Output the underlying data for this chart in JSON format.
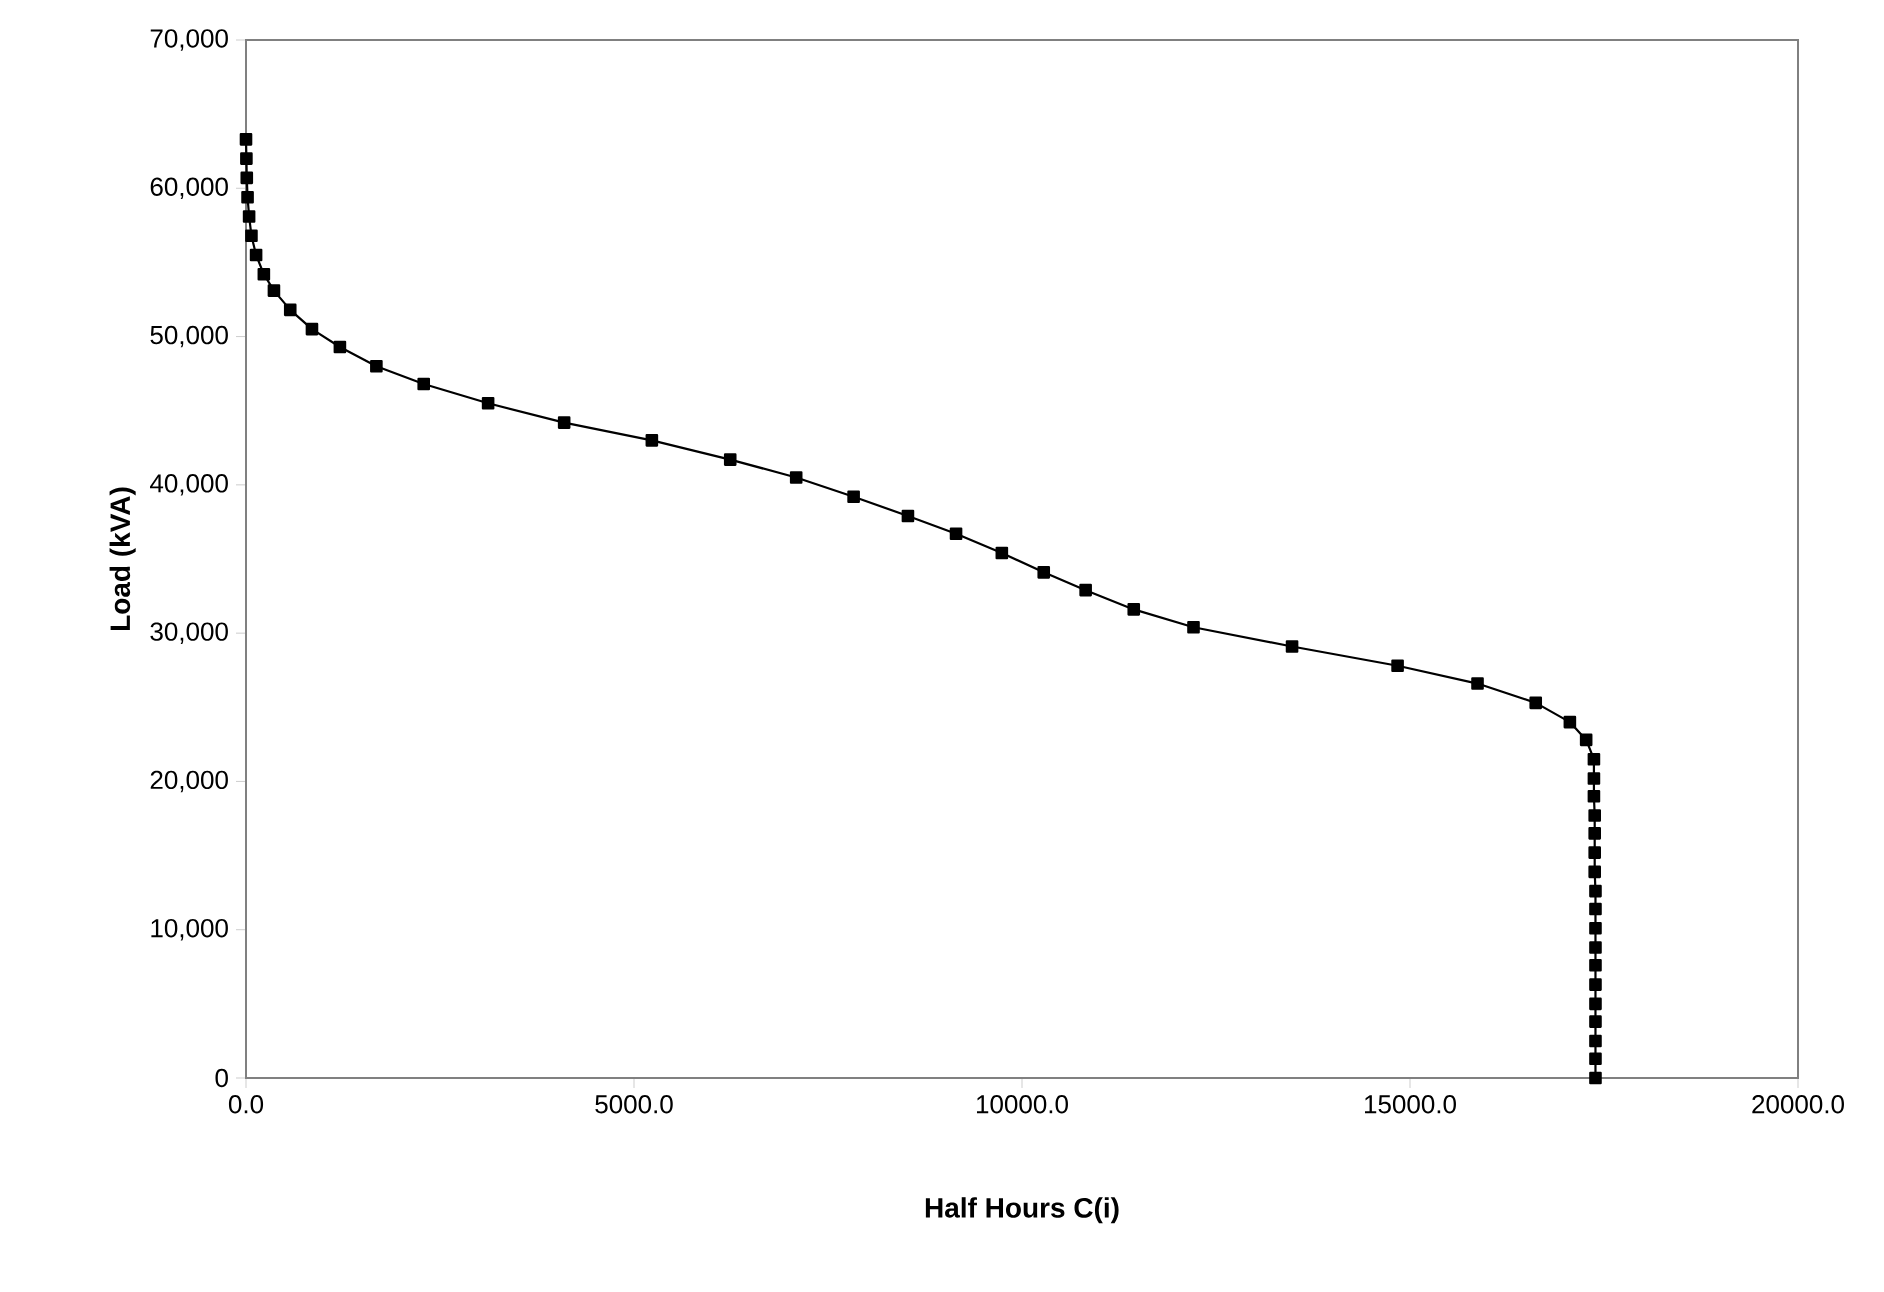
{
  "chart_data": {
    "type": "line",
    "xlabel": "Half Hours C(i)",
    "ylabel": "Load (kVA)",
    "xlim": [
      0,
      20000
    ],
    "ylim": [
      0,
      70000
    ],
    "xticks": [
      {
        "value": 0,
        "label": "0.0"
      },
      {
        "value": 5000,
        "label": "5000.0"
      },
      {
        "value": 10000,
        "label": "10000.0"
      },
      {
        "value": 15000,
        "label": "15000.0"
      },
      {
        "value": 20000,
        "label": "20000.0"
      }
    ],
    "yticks": [
      {
        "value": 0,
        "label": "0"
      },
      {
        "value": 10000,
        "label": "10,000"
      },
      {
        "value": 20000,
        "label": "20,000"
      },
      {
        "value": 30000,
        "label": "30,000"
      },
      {
        "value": 40000,
        "label": "40,000"
      },
      {
        "value": 50000,
        "label": "50,000"
      },
      {
        "value": 60000,
        "label": "60,000"
      },
      {
        "value": 70000,
        "label": "70,000"
      }
    ],
    "grid": false,
    "marker": "square",
    "line_style": "solid",
    "series": [
      {
        "color": "#000000",
        "x": [
          0,
          5,
          10,
          20,
          40,
          70,
          130,
          230,
          360,
          570,
          850,
          1210,
          1680,
          2290,
          3120,
          4100,
          5230,
          6240,
          7090,
          7830,
          8530,
          9150,
          9740,
          10280,
          10820,
          11440,
          12210,
          13480,
          14840,
          15870,
          16620,
          17060,
          17270,
          17370,
          17370,
          17370,
          17380,
          17380,
          17380,
          17380,
          17390,
          17390,
          17390,
          17390,
          17390,
          17390,
          17390,
          17390,
          17390,
          17390,
          17390
        ],
        "values": [
          63300,
          62000,
          60700,
          59400,
          58100,
          56800,
          55500,
          54200,
          53100,
          51800,
          50500,
          49300,
          48000,
          46800,
          45500,
          44200,
          43000,
          41700,
          40500,
          39200,
          37900,
          36700,
          35400,
          34100,
          32900,
          31600,
          30400,
          29100,
          27800,
          26600,
          25300,
          24000,
          22800,
          21500,
          20200,
          19000,
          17700,
          16500,
          15200,
          13900,
          12600,
          11400,
          10100,
          8800,
          7600,
          6300,
          5000,
          3800,
          2500,
          1300,
          0
        ]
      }
    ]
  }
}
